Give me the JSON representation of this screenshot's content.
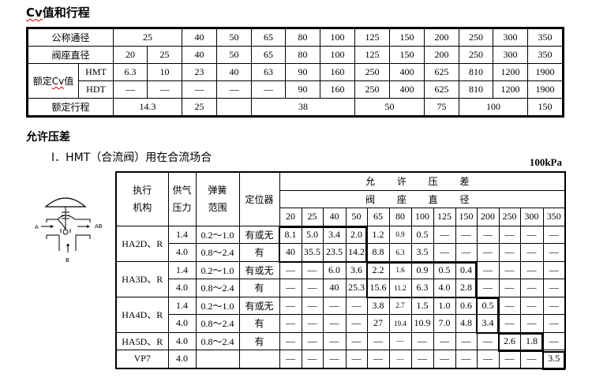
{
  "section1": {
    "title_prefix": "Cv",
    "title_rest": "值和行程"
  },
  "table1": {
    "nominal_label": "公称通径",
    "nominal": [
      "25",
      "40",
      "50",
      "65",
      "80",
      "100",
      "125",
      "150",
      "200",
      "250",
      "300",
      "350"
    ],
    "seat_label": "阀座直径",
    "seat": [
      "20",
      "25",
      "40",
      "50",
      "65",
      "80",
      "100",
      "125",
      "150",
      "200",
      "250",
      "300",
      "350"
    ],
    "cv_label_prefix": "额定",
    "cv_label_cv": "Cv",
    "cv_label_suffix": "值",
    "hmt_label": "HMT",
    "hmt": [
      "6.3",
      "10",
      "23",
      "40",
      "63",
      "90",
      "160",
      "250",
      "400",
      "625",
      "810",
      "1200",
      "1900"
    ],
    "hdt_label": "HDT",
    "hdt": [
      "—",
      "—",
      "—",
      "—",
      "—",
      "90",
      "160",
      "250",
      "400",
      "625",
      "810",
      "1200",
      "1900"
    ],
    "stroke_label": "额定行程",
    "stroke": [
      "14.3",
      "25",
      "",
      "38",
      "50",
      "75",
      "100",
      "150"
    ]
  },
  "section2": {
    "title": "允许压差",
    "subtitle": "Ⅰ．HMT（合流阀）用在合流场合",
    "unit": "100kPa"
  },
  "diagram": {
    "label_a": "A",
    "label_ab": "AB",
    "label_b": "B"
  },
  "table2": {
    "headers": {
      "actuator": "执行机构",
      "supply": "供气压力",
      "spring": "弹簧范围",
      "positioner": "定位器",
      "allowable": "允 许 压 差",
      "seat": "阀 座 直 径"
    },
    "sizes": [
      "20",
      "25",
      "40",
      "50",
      "65",
      "80",
      "100",
      "125",
      "150",
      "200",
      "250",
      "300",
      "350"
    ],
    "rows": [
      {
        "actuator": "HA2D、R",
        "supply": "1.4",
        "spring": "0.2～1.0",
        "positioner": "有或无",
        "values": [
          "8.1",
          "5.0",
          "3.4",
          "2.0",
          "1.2",
          "0.9",
          "0.5",
          "—",
          "—",
          "—",
          "—",
          "—",
          "—"
        ]
      },
      {
        "supply": "4.0",
        "spring": "0.8～2.4",
        "positioner": "有",
        "values": [
          "40",
          "35.5",
          "23.5",
          "14.2",
          "8.8",
          "6.3",
          "3.5",
          "—",
          "—",
          "—",
          "—",
          "—",
          "—"
        ]
      },
      {
        "actuator": "HA3D、R",
        "supply": "1.4",
        "spring": "0.2～1.0",
        "positioner": "有或无",
        "values": [
          "—",
          "—",
          "6.0",
          "3.6",
          "2.2",
          "1.6",
          "0.9",
          "0.5",
          "0.4",
          "—",
          "—",
          "—",
          "—"
        ]
      },
      {
        "supply": "4.0",
        "spring": "0.8～2.4",
        "positioner": "有",
        "values": [
          "—",
          "—",
          "40",
          "25.3",
          "15.6",
          "11.2",
          "6.3",
          "4.0",
          "2.8",
          "—",
          "—",
          "—",
          "—"
        ]
      },
      {
        "actuator": "HA4D、R",
        "supply": "1.4",
        "spring": "0.2～1.0",
        "positioner": "有或无",
        "values": [
          "—",
          "—",
          "—",
          "—",
          "3.8",
          "2.7",
          "1.5",
          "1.0",
          "0.6",
          "0.5",
          "—",
          "—",
          "—"
        ]
      },
      {
        "supply": "4.0",
        "spring": "0.8～2.4",
        "positioner": "有",
        "values": [
          "—",
          "—",
          "—",
          "—",
          "27",
          "19.4",
          "10.9",
          "7.0",
          "4.8",
          "3.4",
          "—",
          "—",
          "—"
        ]
      },
      {
        "actuator": "HA5D、R",
        "supply": "4.0",
        "spring": "0.8～2.4",
        "positioner": "有",
        "values": [
          "—",
          "—",
          "—",
          "—",
          "—",
          "—",
          "—",
          "—",
          "—",
          "—",
          "2.6",
          "1.8",
          "—"
        ]
      },
      {
        "actuator": "VP7",
        "supply": "4.0",
        "spring": "",
        "positioner": "",
        "values": [
          "—",
          "—",
          "—",
          "—",
          "—",
          "—",
          "—",
          "—",
          "—",
          "—",
          "—",
          "—",
          "3.5"
        ]
      }
    ]
  }
}
